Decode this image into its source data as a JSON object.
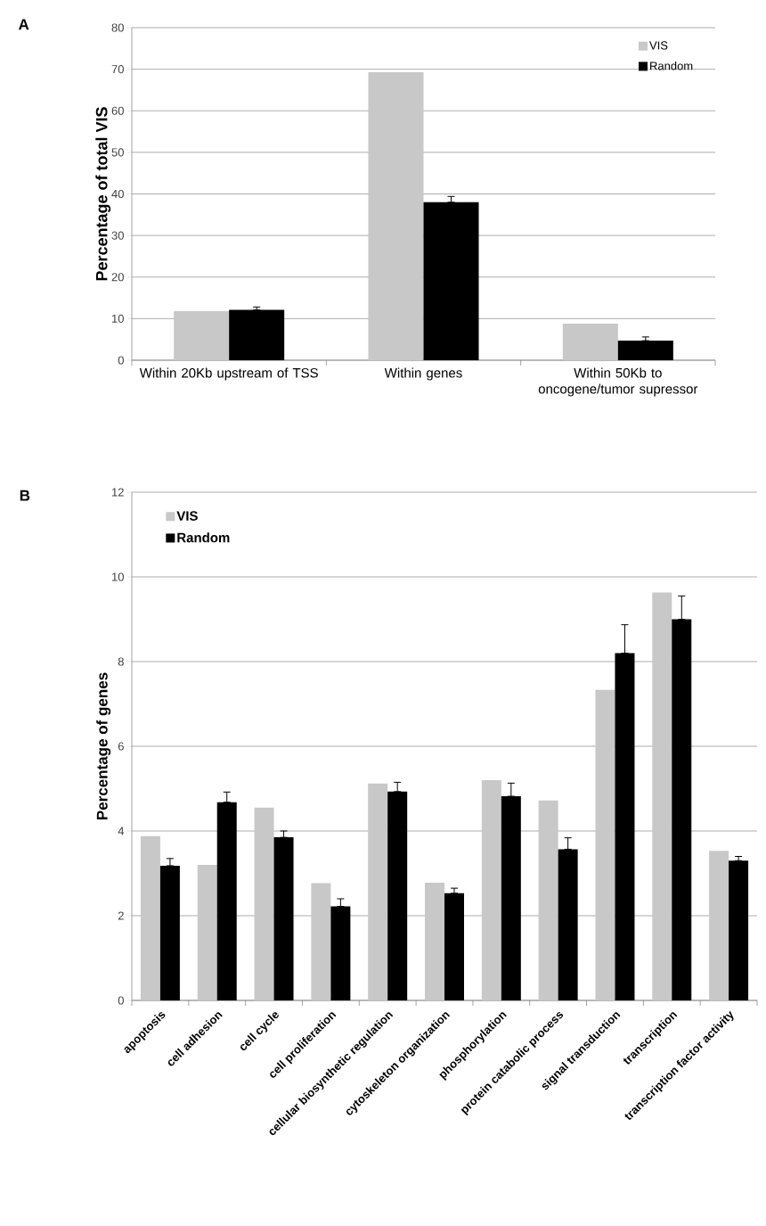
{
  "chart_data": [
    {
      "type": "bar",
      "ylabel": "Percentage of total VIS",
      "annotations": [
        "A"
      ],
      "categories": [
        "Within 20Kb upstream of TSS",
        "Within genes",
        "Within 50Kb to oncogene/tumor supressor"
      ],
      "series": [
        {
          "name": "VIS",
          "color": "#c8c8c8",
          "values": [
            11.8,
            69.3,
            8.8
          ]
        },
        {
          "name": "Random",
          "color": "#000000",
          "values": [
            12.1,
            38.0,
            4.7
          ],
          "errors": [
            [
              12.1,
              12.8
            ],
            [
              38.0,
              39.4
            ],
            [
              4.7,
              5.6
            ]
          ]
        }
      ],
      "ylim": [
        0,
        80
      ],
      "yticks": [
        0,
        10,
        20,
        30,
        40,
        50,
        60,
        70,
        80
      ],
      "grid": "y",
      "legend": "top right"
    },
    {
      "type": "bar",
      "ylabel": "Percentage of genes",
      "annotations": [
        "B"
      ],
      "categories": [
        "apoptosis",
        "cell adhesion",
        "cell cycle",
        "cell proliferation",
        "cellular biosynthetic regulation",
        "cytoskeleton organization",
        "phosphorylation",
        "protein catabolic process",
        "signal transduction",
        "transcription",
        "transcription factor activity"
      ],
      "series": [
        {
          "name": "VIS",
          "color": "#c8c8c8",
          "values": [
            3.88,
            3.2,
            4.55,
            2.77,
            5.12,
            2.78,
            5.2,
            4.72,
            7.33,
            9.63,
            3.53
          ]
        },
        {
          "name": "Random",
          "color": "#000000",
          "values": [
            3.18,
            4.68,
            3.85,
            2.22,
            4.93,
            2.53,
            4.82,
            3.57,
            8.2,
            9.0,
            3.3
          ],
          "errors": [
            [
              3.18,
              3.35
            ],
            [
              4.68,
              4.92
            ],
            [
              3.85,
              4.0
            ],
            [
              2.22,
              2.4
            ],
            [
              4.93,
              5.15
            ],
            [
              2.53,
              2.65
            ],
            [
              4.82,
              5.13
            ],
            [
              3.57,
              3.84
            ],
            [
              8.2,
              8.87
            ],
            [
              9.0,
              9.55
            ],
            [
              3.3,
              3.4
            ]
          ]
        }
      ],
      "ylim": [
        0,
        12
      ],
      "yticks": [
        0,
        2,
        4,
        6,
        8,
        10,
        12
      ],
      "grid": "y",
      "legend": "top left"
    }
  ]
}
